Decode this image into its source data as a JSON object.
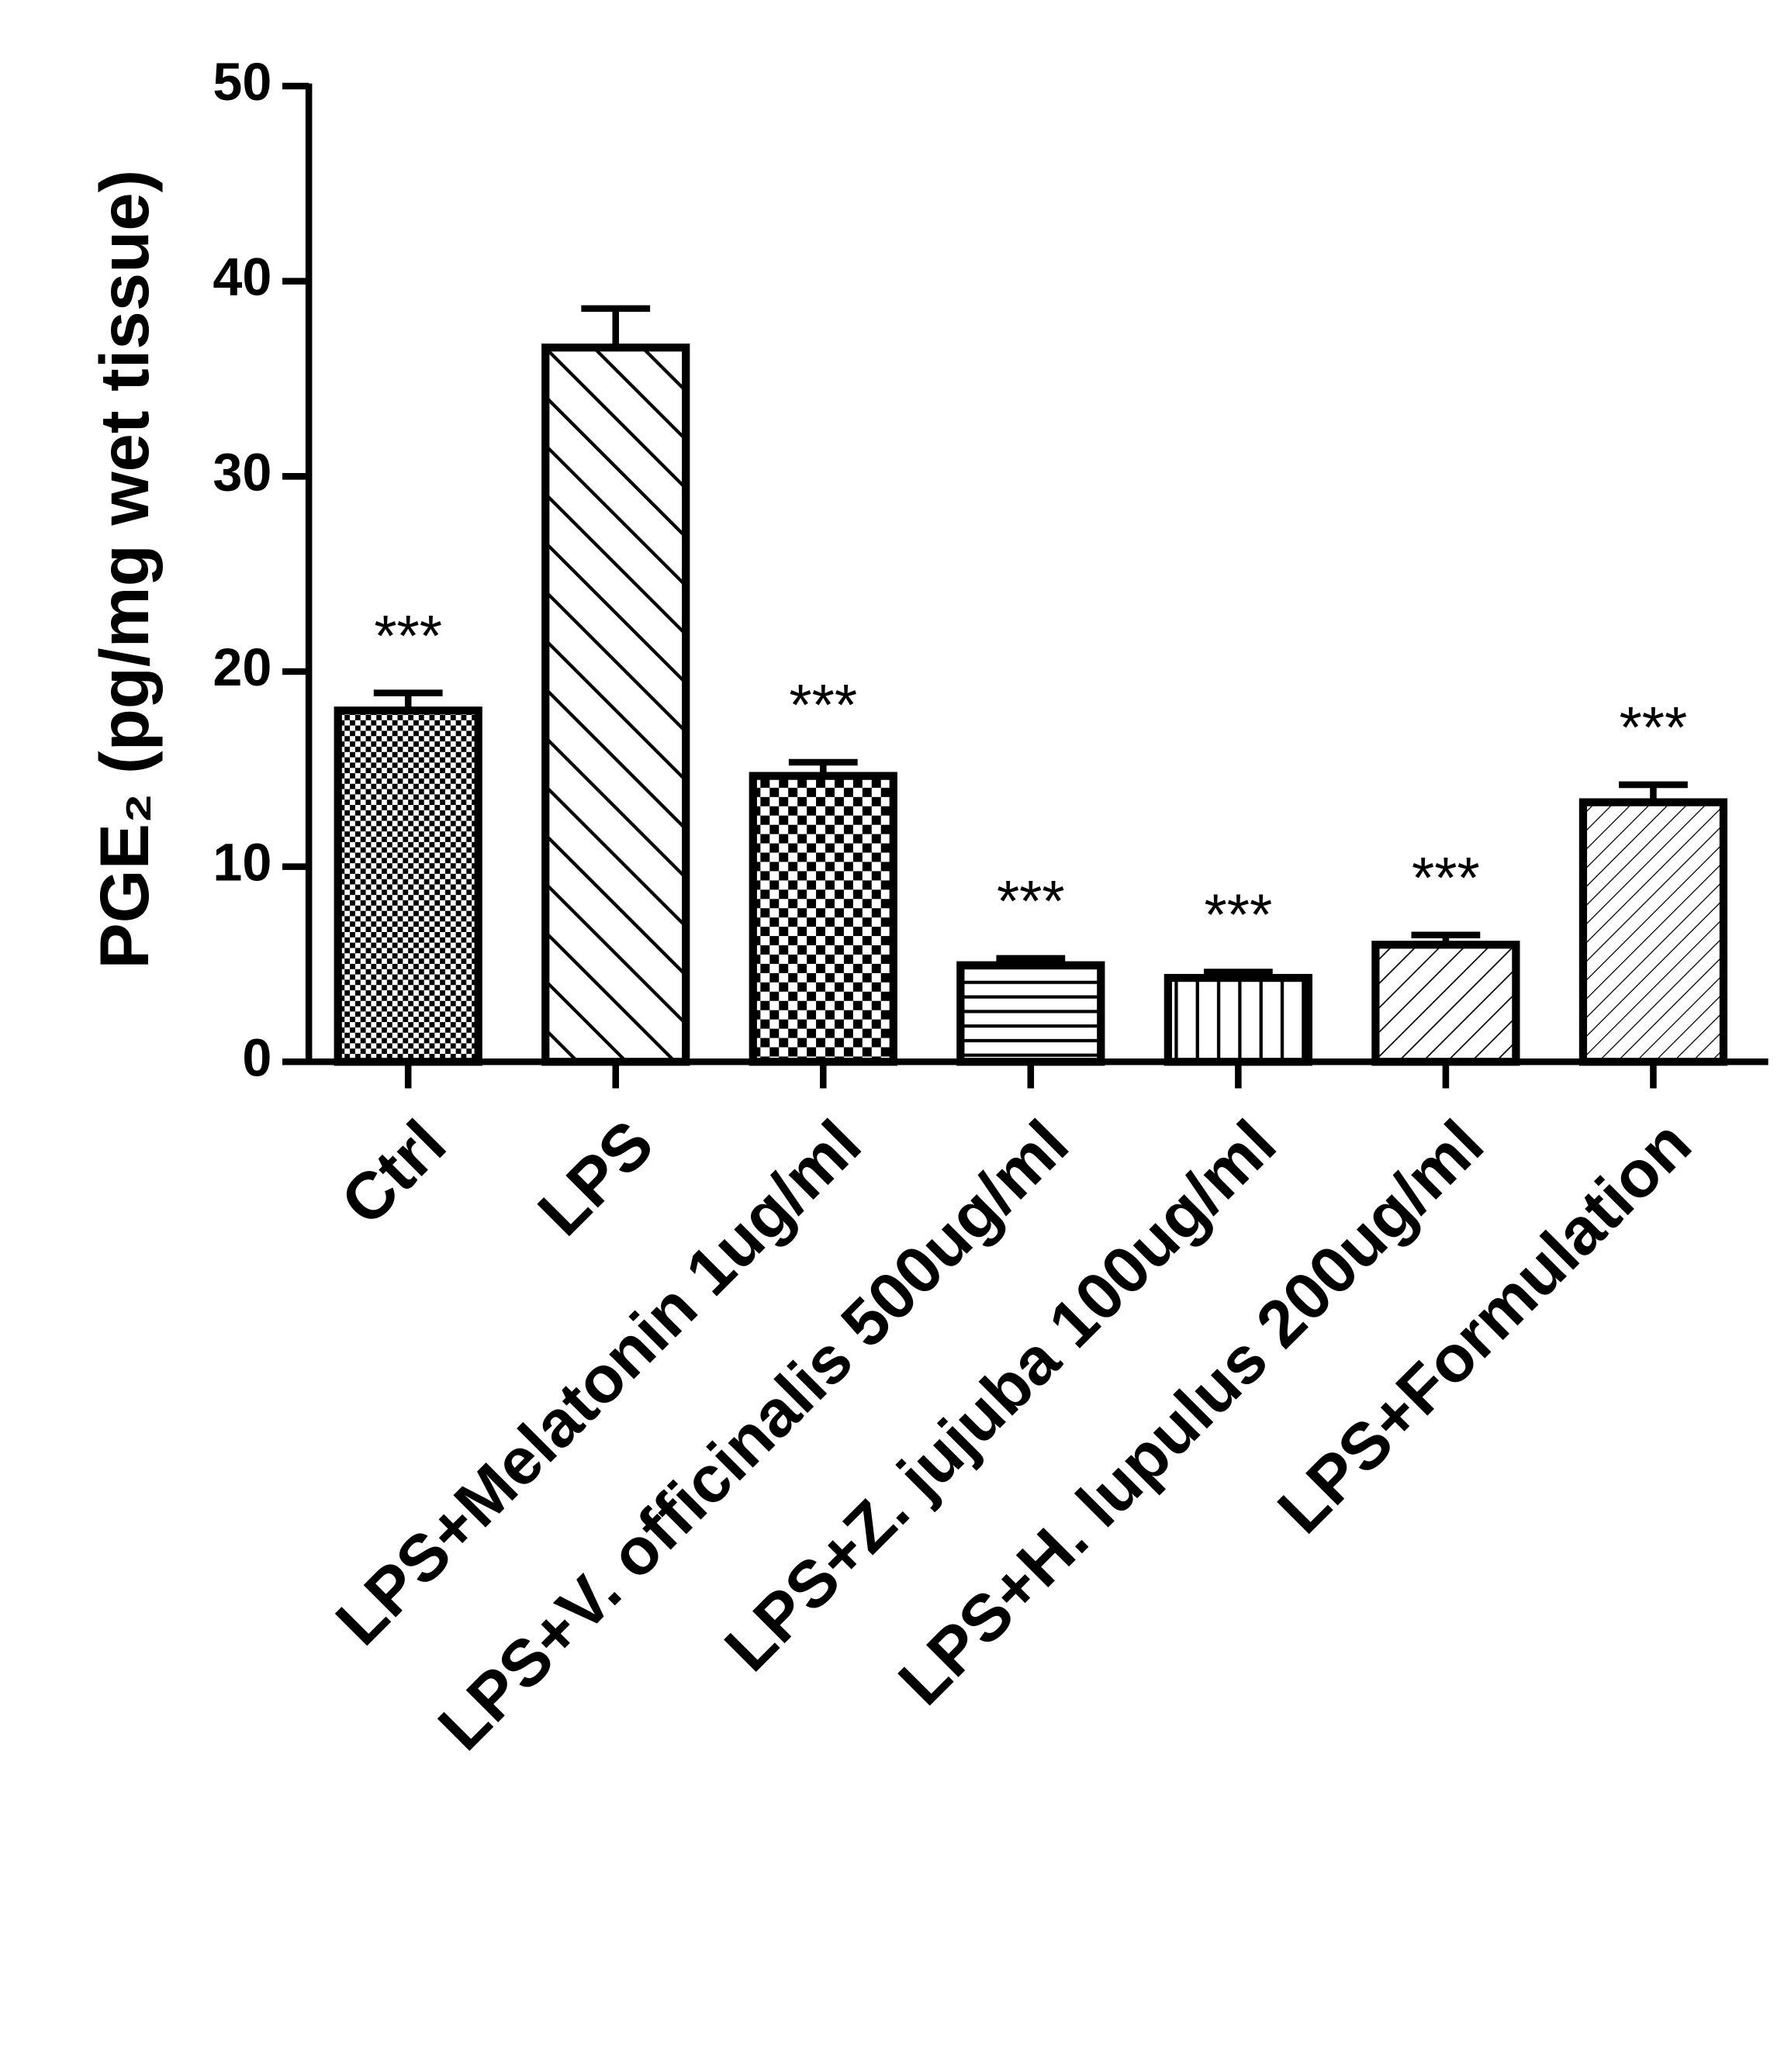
{
  "chart_data": {
    "type": "bar",
    "y_label": "PGE₂ (pg/mg wet tissue)",
    "categories": [
      "Ctrl",
      "LPS",
      "LPS+Melatonin 1ug/ml",
      "LPS+V. officinalis 500ug/ml",
      "LPS+Z. jujuba 100ug/ml",
      "LPS+H. lupulus 200ug/ml",
      "LPS+Formulation"
    ],
    "values": [
      18.0,
      36.6,
      14.65,
      4.95,
      4.3,
      6.0,
      13.3
    ],
    "errors": [
      0.9,
      2.0,
      0.7,
      0.35,
      0.3,
      0.5,
      0.9
    ],
    "annotations": [
      "***",
      null,
      "***",
      "***",
      "***",
      "***",
      "***"
    ],
    "patterns": [
      "crosshatch",
      "diagonal-back",
      "checker",
      "horizontal",
      "vertical",
      "diagonal",
      "diagonal-fine"
    ],
    "color": "#000000",
    "ylim": [
      0,
      50
    ],
    "yticks": [
      0,
      10,
      20,
      30,
      40,
      50
    ]
  }
}
